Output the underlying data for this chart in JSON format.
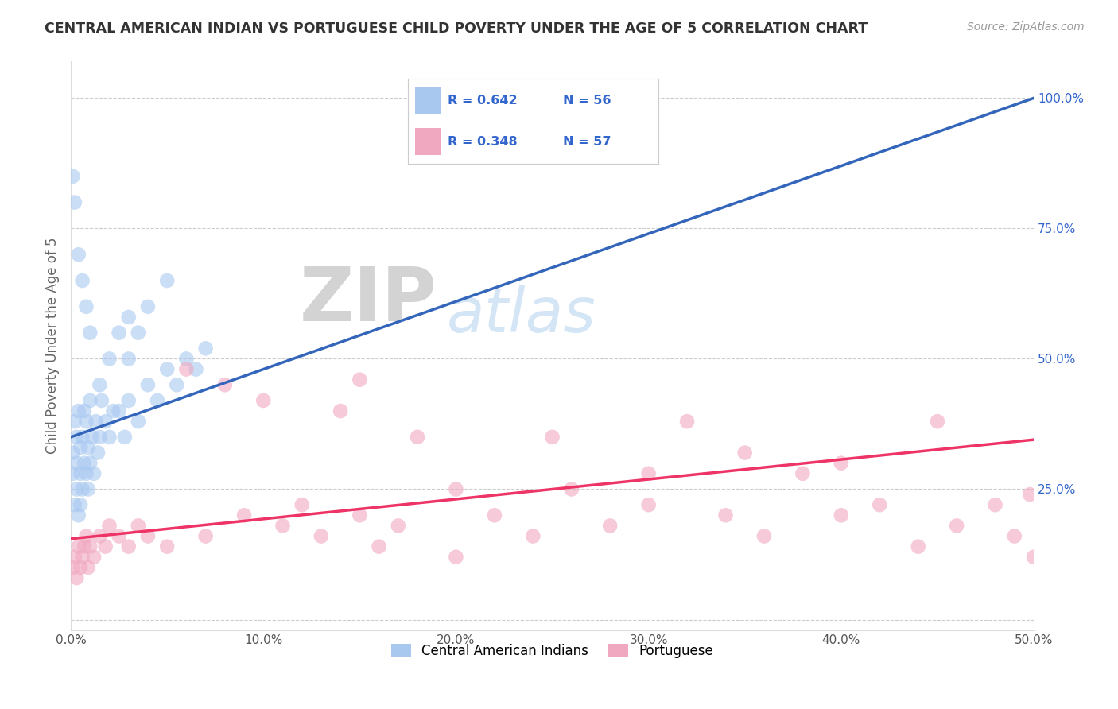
{
  "title": "CENTRAL AMERICAN INDIAN VS PORTUGUESE CHILD POVERTY UNDER THE AGE OF 5 CORRELATION CHART",
  "source": "Source: ZipAtlas.com",
  "ylabel": "Child Poverty Under the Age of 5",
  "xlim": [
    0.0,
    0.5
  ],
  "ylim": [
    -0.02,
    1.07
  ],
  "xticks": [
    0.0,
    0.1,
    0.2,
    0.3,
    0.4,
    0.5
  ],
  "xtick_labels": [
    "0.0%",
    "10.0%",
    "20.0%",
    "30.0%",
    "40.0%",
    "50.0%"
  ],
  "yticks": [
    0.0,
    0.25,
    0.5,
    0.75,
    1.0
  ],
  "ytick_labels": [
    "",
    "25.0%",
    "50.0%",
    "75.0%",
    "100.0%"
  ],
  "blue_R": 0.642,
  "blue_N": 56,
  "pink_R": 0.348,
  "pink_N": 57,
  "blue_color": "#A8C8F0",
  "pink_color": "#F0A8C0",
  "blue_line_color": "#3366BB",
  "pink_line_color": "#EE3366",
  "legend_blue_label": "Central American Indians",
  "legend_pink_label": "Portuguese",
  "blue_line_x0": 0.0,
  "blue_line_y0": 0.35,
  "blue_line_x1": 0.5,
  "blue_line_y1": 1.0,
  "pink_line_x0": 0.0,
  "pink_line_y0": 0.155,
  "pink_line_x1": 0.5,
  "pink_line_y1": 0.345,
  "blue_scatter_x": [
    0.001,
    0.001,
    0.002,
    0.002,
    0.003,
    0.003,
    0.003,
    0.004,
    0.004,
    0.005,
    0.005,
    0.005,
    0.006,
    0.006,
    0.007,
    0.007,
    0.008,
    0.008,
    0.009,
    0.009,
    0.01,
    0.01,
    0.011,
    0.012,
    0.013,
    0.014,
    0.015,
    0.016,
    0.018,
    0.02,
    0.022,
    0.025,
    0.028,
    0.03,
    0.035,
    0.04,
    0.045,
    0.05,
    0.055,
    0.06,
    0.065,
    0.07,
    0.03,
    0.035,
    0.04,
    0.05,
    0.03,
    0.025,
    0.02,
    0.015,
    0.01,
    0.008,
    0.006,
    0.004,
    0.002,
    0.001
  ],
  "blue_scatter_y": [
    0.28,
    0.32,
    0.22,
    0.38,
    0.25,
    0.3,
    0.35,
    0.2,
    0.4,
    0.28,
    0.33,
    0.22,
    0.35,
    0.25,
    0.3,
    0.4,
    0.28,
    0.38,
    0.25,
    0.33,
    0.3,
    0.42,
    0.35,
    0.28,
    0.38,
    0.32,
    0.35,
    0.42,
    0.38,
    0.35,
    0.4,
    0.4,
    0.35,
    0.42,
    0.38,
    0.45,
    0.42,
    0.48,
    0.45,
    0.5,
    0.48,
    0.52,
    0.5,
    0.55,
    0.6,
    0.65,
    0.58,
    0.55,
    0.5,
    0.45,
    0.55,
    0.6,
    0.65,
    0.7,
    0.8,
    0.85
  ],
  "pink_scatter_x": [
    0.001,
    0.002,
    0.003,
    0.004,
    0.005,
    0.006,
    0.007,
    0.008,
    0.009,
    0.01,
    0.012,
    0.015,
    0.018,
    0.02,
    0.025,
    0.03,
    0.035,
    0.04,
    0.05,
    0.06,
    0.07,
    0.08,
    0.09,
    0.1,
    0.11,
    0.12,
    0.13,
    0.14,
    0.15,
    0.16,
    0.17,
    0.18,
    0.2,
    0.22,
    0.24,
    0.26,
    0.28,
    0.3,
    0.32,
    0.34,
    0.36,
    0.38,
    0.4,
    0.42,
    0.44,
    0.46,
    0.48,
    0.49,
    0.498,
    0.5,
    0.15,
    0.2,
    0.25,
    0.3,
    0.35,
    0.4,
    0.45
  ],
  "pink_scatter_y": [
    0.1,
    0.12,
    0.08,
    0.14,
    0.1,
    0.12,
    0.14,
    0.16,
    0.1,
    0.14,
    0.12,
    0.16,
    0.14,
    0.18,
    0.16,
    0.14,
    0.18,
    0.16,
    0.14,
    0.48,
    0.16,
    0.45,
    0.2,
    0.42,
    0.18,
    0.22,
    0.16,
    0.4,
    0.2,
    0.14,
    0.18,
    0.35,
    0.12,
    0.2,
    0.16,
    0.25,
    0.18,
    0.22,
    0.38,
    0.2,
    0.16,
    0.28,
    0.2,
    0.22,
    0.14,
    0.18,
    0.22,
    0.16,
    0.24,
    0.12,
    0.46,
    0.25,
    0.35,
    0.28,
    0.32,
    0.3,
    0.38
  ],
  "grid_color": "#CCCCCC",
  "background_color": "#FFFFFF",
  "title_color": "#333333",
  "axis_label_color": "#666666",
  "tick_label_color": "#555555",
  "stat_text_color": "#3366CC"
}
